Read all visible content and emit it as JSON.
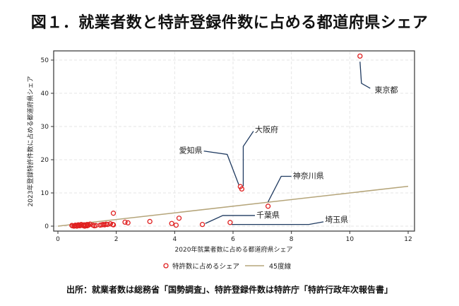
{
  "title": "図１．就業者数と特許登録件数に占める都道府県シェア",
  "source": "出所：就業者数は総務省「国勢調査」、特許登録件数は特許庁「特許行政年次報告書」",
  "chart_data": {
    "type": "scatter",
    "xlabel": "2020年就業者数に占める都道府県シェア",
    "ylabel": "2023年登録特許件数に占める都道府県シェア",
    "xlim": [
      0,
      12
    ],
    "ylim": [
      0,
      50
    ],
    "xticks": [
      0,
      2,
      4,
      6,
      8,
      10,
      12
    ],
    "yticks": [
      0,
      10,
      20,
      30,
      40,
      50
    ],
    "grid": true,
    "legend_position": "bottom",
    "colors": {
      "points": "#e02020",
      "line": "#b5a57a",
      "leader": "#1f3a60"
    },
    "series": [
      {
        "name": "特許数に占めるシェア",
        "kind": "scatter",
        "points": [
          [
            10.35,
            51.2
          ],
          [
            6.25,
            11.9
          ],
          [
            6.3,
            11.2
          ],
          [
            7.2,
            6.0
          ],
          [
            4.95,
            0.5
          ],
          [
            5.9,
            1.1
          ],
          [
            1.9,
            3.9
          ],
          [
            4.15,
            2.4
          ],
          [
            4.05,
            0.3
          ],
          [
            3.9,
            0.8
          ],
          [
            3.15,
            1.4
          ],
          [
            2.3,
            1.2
          ],
          [
            2.4,
            1.0
          ],
          [
            1.9,
            0.4
          ],
          [
            1.88,
            0.5
          ],
          [
            1.8,
            0.7
          ],
          [
            1.65,
            0.6
          ],
          [
            1.55,
            0.5
          ],
          [
            1.5,
            0.4
          ],
          [
            1.45,
            0.3
          ],
          [
            1.3,
            0.2
          ],
          [
            1.1,
            0.6
          ],
          [
            1.05,
            0.3
          ],
          [
            1.0,
            0.5
          ],
          [
            1.0,
            0.1
          ],
          [
            0.95,
            0.2
          ],
          [
            0.9,
            0.4
          ],
          [
            0.88,
            0.1
          ],
          [
            0.85,
            0.3
          ],
          [
            0.8,
            0.5
          ],
          [
            0.78,
            0.2
          ],
          [
            0.75,
            0.1
          ],
          [
            0.7,
            0.4
          ],
          [
            0.68,
            0.2
          ],
          [
            0.6,
            0.3
          ],
          [
            0.58,
            0.1
          ],
          [
            0.55,
            0.0
          ],
          [
            0.5,
            0.1
          ],
          [
            0.48,
            0.2
          ],
          [
            1.2,
            0.3
          ],
          [
            1.02,
            0.2
          ],
          [
            0.92,
            0.0
          ],
          [
            1.6,
            0.4
          ],
          [
            1.7,
            0.5
          ],
          [
            0.65,
            0.0
          ],
          [
            0.72,
            0.3
          ],
          [
            1.25,
            0.1
          ]
        ]
      },
      {
        "name": "45度線",
        "kind": "line",
        "points": [
          [
            0,
            0
          ],
          [
            12,
            12
          ]
        ]
      }
    ],
    "annotations": [
      {
        "label": "東京都",
        "point": [
          10.35,
          51.2
        ]
      },
      {
        "label": "大阪府",
        "point": [
          6.3,
          11.2
        ]
      },
      {
        "label": "愛知県",
        "point": [
          6.25,
          11.9
        ]
      },
      {
        "label": "神奈川県",
        "point": [
          7.2,
          6.0
        ]
      },
      {
        "label": "千葉県",
        "point": [
          4.95,
          0.5
        ]
      },
      {
        "label": "埼玉県",
        "point": [
          5.9,
          1.1
        ]
      }
    ]
  }
}
